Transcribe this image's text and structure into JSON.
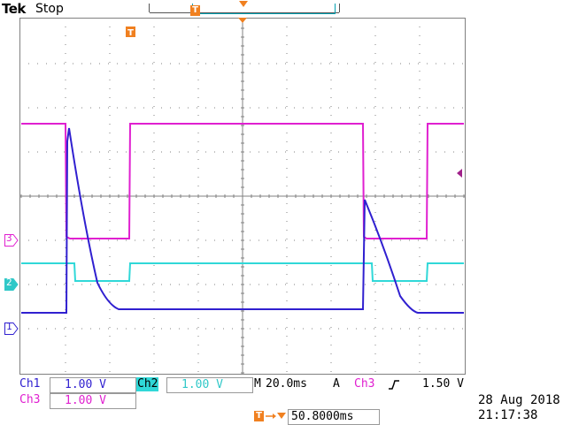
{
  "header": {
    "brand": "Tek",
    "state": "Stop",
    "trigger_badge": "T"
  },
  "channels": [
    {
      "name": "Ch1",
      "scale": "1.00 V",
      "color": "#3020d0",
      "marker": "1"
    },
    {
      "name": "Ch2",
      "scale": "1.00 V",
      "color": "#30d8d8",
      "marker": "2"
    },
    {
      "name": "Ch3",
      "scale": "1.00 V",
      "color": "#e020d0",
      "marker": "3"
    }
  ],
  "timebase": {
    "label": "M",
    "value": "20.0ms"
  },
  "trigger": {
    "mode": "A",
    "source": "Ch3",
    "slope_icon": "rising-edge-icon",
    "level": "1.50 V"
  },
  "position": {
    "value": "50.8000ms"
  },
  "datetime": {
    "date": "28 Aug 2018",
    "time": "21:17:38"
  },
  "colors": {
    "grid": "#808080",
    "ch1": "#3020d0",
    "ch2": "#30d8d8",
    "ch3": "#e020d0",
    "trigger": "#f08020"
  }
}
